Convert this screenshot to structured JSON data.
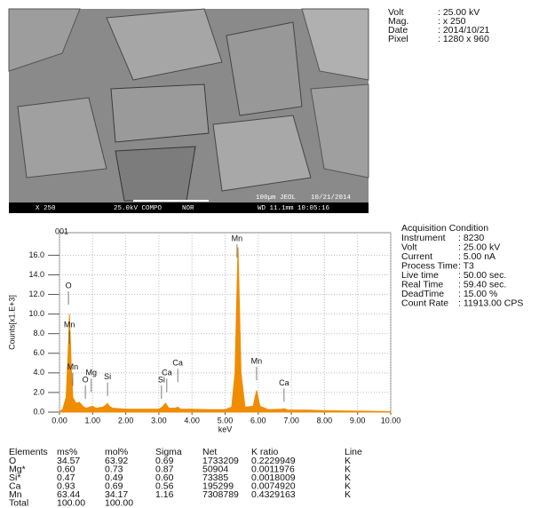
{
  "sem": {
    "caption": [
      "X 250",
      "25.0kV COMPO",
      "NOR",
      "WD 11.1mm 10:05:16"
    ],
    "scale_text": [
      "100µm JEOL",
      "10/21/2014"
    ]
  },
  "meta": [
    [
      "Volt",
      ": 25.00 kV"
    ],
    [
      "Mag.",
      ": x 250"
    ],
    [
      "Date",
      ": 2014/10/21"
    ],
    [
      "Pixel",
      ": 1280 x 960"
    ]
  ],
  "acquisition": {
    "title": "Acquisition Condition",
    "rows": [
      [
        "Instrument",
        ": 8230"
      ],
      [
        "Volt",
        ": 25.00 kV"
      ],
      [
        "Current",
        ": 5.00 nA"
      ],
      [
        "Process Time",
        ": T3"
      ],
      [
        "Live time",
        ": 50.00 sec."
      ],
      [
        "Real Time",
        ": 59.40 sec."
      ],
      [
        "DeadTime",
        ": 15.00 %"
      ],
      [
        "Count Rate",
        ": 11913.00 CPS"
      ]
    ]
  },
  "chart_data": {
    "type": "area",
    "title": "001",
    "x_label": "keV",
    "y_label": "Counts[x1.E+3]",
    "color": "#f08c00",
    "x": [
      0.0,
      0.1,
      0.2,
      0.25,
      0.3,
      0.35,
      0.4,
      0.5,
      0.6,
      0.7,
      0.8,
      0.9,
      1.0,
      1.1,
      1.3,
      1.4,
      1.45,
      1.5,
      1.6,
      2.0,
      2.5,
      3.0,
      3.1,
      3.2,
      3.3,
      3.5,
      3.57,
      3.65,
      4.0,
      4.5,
      5.0,
      5.2,
      5.3,
      5.39,
      5.48,
      5.6,
      5.85,
      5.95,
      6.05,
      6.3,
      6.7,
      6.78,
      6.9,
      7.5,
      8.0,
      9.0,
      10.0
    ],
    "values": [
      0,
      0.3,
      1.5,
      5.0,
      10.0,
      5.0,
      1.5,
      0.9,
      1.0,
      0.6,
      0.4,
      0.5,
      0.6,
      0.4,
      0.5,
      0.7,
      0.9,
      0.6,
      0.4,
      0.3,
      0.3,
      0.3,
      0.5,
      0.9,
      0.4,
      0.4,
      0.5,
      0.3,
      0.3,
      0.25,
      0.25,
      0.5,
      4.0,
      16.8,
      4.0,
      0.5,
      0.6,
      2.2,
      0.6,
      0.25,
      0.3,
      0.35,
      0.2,
      0.2,
      0.15,
      0.1,
      0.05
    ],
    "xlim": [
      0,
      10
    ],
    "ylim": [
      0,
      18.3
    ],
    "xticks": [
      {
        "value": 0,
        "label": "0.00"
      },
      {
        "value": 1,
        "label": "1.00"
      },
      {
        "value": 2,
        "label": "2.00"
      },
      {
        "value": 3,
        "label": "3.00"
      },
      {
        "value": 4,
        "label": "4.00"
      },
      {
        "value": 5,
        "label": "5.00"
      },
      {
        "value": 6,
        "label": "6.00"
      },
      {
        "value": 7,
        "label": "7.00"
      },
      {
        "value": 8,
        "label": "8.00"
      },
      {
        "value": 9,
        "label": "9.00"
      },
      {
        "value": 10,
        "label": "10.00"
      }
    ],
    "yticks": [
      {
        "value": 0,
        "label": "0.0"
      },
      {
        "value": 2,
        "label": "2.0"
      },
      {
        "value": 4,
        "label": "4.0"
      },
      {
        "value": 6,
        "label": "6.0"
      },
      {
        "value": 8,
        "label": "8.0"
      },
      {
        "value": 10,
        "label": "10.0"
      },
      {
        "value": 12,
        "label": "12.0"
      },
      {
        "value": 14,
        "label": "14.0"
      },
      {
        "value": 16,
        "label": "16.0"
      }
    ],
    "grid": true,
    "annotations": [
      {
        "text": "O",
        "x": 0.27,
        "y": 12.4
      },
      {
        "text": "Mn",
        "x": 0.3,
        "y": 8.4
      },
      {
        "text": "Mn",
        "x": 0.4,
        "y": 4.1
      },
      {
        "text": "O",
        "x": 0.78,
        "y": 2.8
      },
      {
        "text": "Mg",
        "x": 0.96,
        "y": 3.5
      },
      {
        "text": "Si",
        "x": 1.45,
        "y": 3.1
      },
      {
        "text": "Si",
        "x": 3.08,
        "y": 2.8
      },
      {
        "text": "Ca",
        "x": 3.24,
        "y": 3.5
      },
      {
        "text": "Ca",
        "x": 3.57,
        "y": 4.5
      },
      {
        "text": "Mn",
        "x": 5.36,
        "y": 17.2
      },
      {
        "text": "Mn",
        "x": 5.95,
        "y": 4.7
      },
      {
        "text": "Ca",
        "x": 6.78,
        "y": 2.5
      }
    ]
  },
  "table": {
    "header": [
      "Elements",
      "ms%",
      "mol%",
      "Sigma",
      "Net",
      "K ratio",
      "Line"
    ],
    "rows": [
      [
        "O",
        "34.57",
        "63.92",
        "0.69",
        "1733209",
        "0.2229949",
        "K"
      ],
      [
        "Mg*",
        "0.60",
        "0.73",
        "0.87",
        "50904",
        "0.0011976",
        "K"
      ],
      [
        "Si*",
        "0.47",
        "0.49",
        "0.60",
        "73385",
        "0.0018009",
        "K"
      ],
      [
        "Ca",
        "0.93",
        "0.69",
        "0.56",
        "195299",
        "0.0074920",
        "K"
      ],
      [
        "Mn",
        "63.44",
        "34.17",
        "1.16",
        "7308789",
        "0.4329163",
        "K"
      ],
      [
        "Total",
        "100.00",
        "100.00"
      ]
    ]
  }
}
